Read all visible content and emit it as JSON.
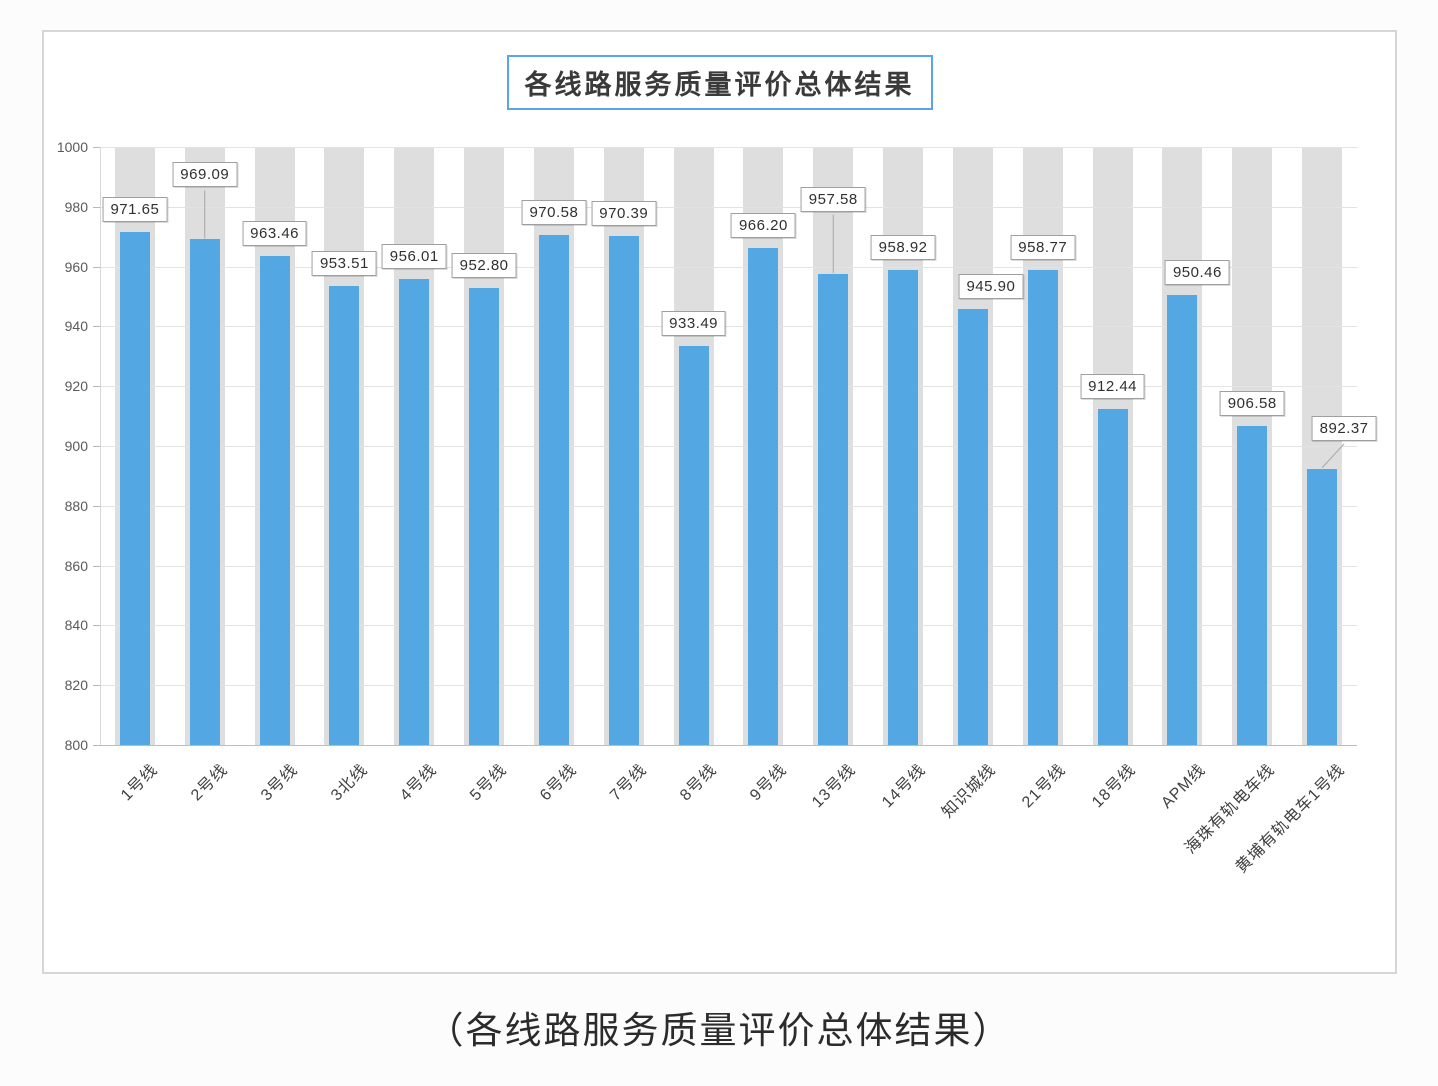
{
  "page": {
    "caption": "（各线路服务质量评价总体结果）"
  },
  "chart_data": {
    "type": "bar",
    "title": "各线路服务质量评价总体结果",
    "categories": [
      "1号线",
      "2号线",
      "3号线",
      "3北线",
      "4号线",
      "5号线",
      "6号线",
      "7号线",
      "8号线",
      "9号线",
      "13号线",
      "14号线",
      "知识城线",
      "21号线",
      "18号线",
      "APM线",
      "海珠有轨电车线",
      "黄埔有轨电车1号线"
    ],
    "values": [
      971.65,
      969.09,
      963.46,
      953.51,
      956.01,
      952.8,
      970.58,
      970.39,
      933.49,
      966.2,
      957.58,
      958.92,
      945.9,
      958.77,
      912.44,
      950.46,
      906.58,
      892.37
    ],
    "xlabel": "",
    "ylabel": "",
    "ylim": [
      800,
      1000
    ],
    "yticks": [
      800,
      820,
      840,
      860,
      880,
      900,
      920,
      940,
      960,
      980,
      1000
    ],
    "grid": true,
    "legend": "none",
    "bar_color": "#53a7e3",
    "background_column_color": "#dedede",
    "background_column_note": "light gray full-height column behind each blue bar",
    "label_box_style": "white box, gray border, above each bar",
    "label_offsets": {
      "1": {
        "dy": -42
      },
      "10": {
        "dy": -52
      },
      "12": {
        "dx": 18
      },
      "15": {
        "dx": 15
      },
      "17": {
        "dx": 22,
        "dy": -18
      }
    },
    "leader_lines": [
      1,
      10,
      17
    ]
  }
}
